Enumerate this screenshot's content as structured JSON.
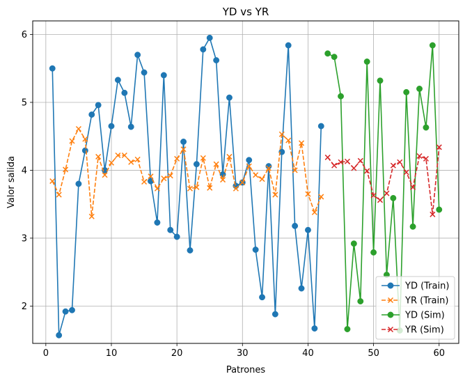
{
  "chart_data": {
    "type": "line",
    "title": "YD vs YR",
    "xlabel": "Patrones",
    "ylabel": "Valor salida",
    "xlim": [
      -2,
      63
    ],
    "ylim": [
      1.45,
      6.2
    ],
    "xticks": [
      0,
      10,
      20,
      30,
      40,
      50,
      60
    ],
    "yticks": [
      2,
      3,
      4,
      5,
      6
    ],
    "grid": true,
    "legend_position": "bottom-right",
    "series": [
      {
        "name": "YD (Train)",
        "color": "#1f77b4",
        "linestyle": "solid",
        "marker": "circle",
        "x": [
          1,
          2,
          3,
          4,
          5,
          6,
          7,
          8,
          9,
          10,
          11,
          12,
          13,
          14,
          15,
          16,
          17,
          18,
          19,
          20,
          21,
          22,
          23,
          24,
          25,
          26,
          27,
          28,
          29,
          30,
          31,
          32,
          33,
          34,
          35,
          36,
          37,
          38,
          39,
          40,
          41,
          42
        ],
        "y": [
          5.5,
          1.57,
          1.92,
          1.94,
          3.8,
          4.29,
          4.82,
          4.96,
          4.0,
          4.65,
          5.33,
          5.14,
          4.64,
          5.7,
          5.44,
          3.84,
          3.23,
          5.4,
          3.12,
          3.02,
          4.42,
          2.82,
          4.09,
          5.78,
          5.95,
          5.62,
          3.94,
          5.07,
          3.77,
          3.82,
          4.15,
          2.83,
          2.13,
          4.06,
          1.88,
          4.27,
          5.84,
          3.18,
          2.26,
          3.12,
          1.67,
          4.65
        ]
      },
      {
        "name": "YR (Train)",
        "color": "#ff7f0e",
        "linestyle": "dashed",
        "marker": "x",
        "x": [
          1,
          2,
          3,
          4,
          5,
          6,
          7,
          8,
          9,
          10,
          11,
          12,
          13,
          14,
          15,
          16,
          17,
          18,
          19,
          20,
          21,
          22,
          23,
          24,
          25,
          26,
          27,
          28,
          29,
          30,
          31,
          32,
          33,
          34,
          35,
          36,
          37,
          38,
          39,
          40,
          41,
          42
        ],
        "y": [
          3.84,
          3.64,
          4.01,
          4.43,
          4.61,
          4.46,
          3.32,
          4.2,
          3.93,
          4.11,
          4.22,
          4.22,
          4.12,
          4.16,
          3.83,
          3.91,
          3.73,
          3.88,
          3.92,
          4.17,
          4.31,
          3.73,
          3.75,
          4.18,
          3.74,
          4.09,
          3.86,
          4.2,
          3.73,
          3.82,
          4.06,
          3.93,
          3.87,
          4.03,
          3.64,
          4.53,
          4.44,
          4.0,
          4.4,
          3.65,
          3.38,
          3.61
        ]
      },
      {
        "name": "YD (Sim)",
        "color": "#2ca02c",
        "linestyle": "solid",
        "marker": "circle",
        "x": [
          43,
          44,
          45,
          46,
          47,
          48,
          49,
          50,
          51,
          52,
          53,
          54,
          55,
          56,
          57,
          58,
          59,
          60
        ],
        "y": [
          5.72,
          5.67,
          5.09,
          1.66,
          2.92,
          2.07,
          5.6,
          2.79,
          5.32,
          2.46,
          3.59,
          1.64,
          5.15,
          3.17,
          5.2,
          4.63,
          5.84,
          3.42
        ]
      },
      {
        "name": "YR (Sim)",
        "color": "#d62728",
        "linestyle": "dashed",
        "marker": "x",
        "x": [
          43,
          44,
          45,
          46,
          47,
          48,
          49,
          50,
          51,
          52,
          53,
          54,
          55,
          56,
          57,
          58,
          59,
          60
        ],
        "y": [
          4.19,
          4.07,
          4.12,
          4.13,
          4.03,
          4.14,
          3.99,
          3.63,
          3.56,
          3.66,
          4.07,
          4.12,
          3.97,
          3.75,
          4.21,
          4.17,
          3.35,
          4.34
        ]
      }
    ]
  }
}
